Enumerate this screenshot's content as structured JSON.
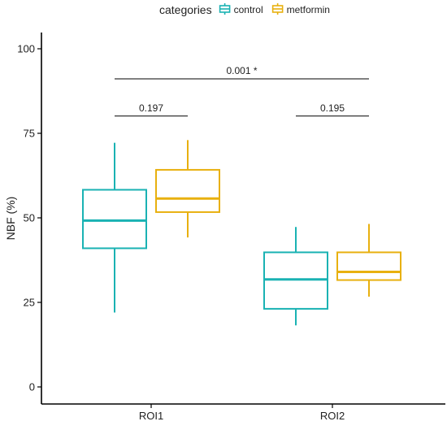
{
  "chart_data": {
    "type": "boxplot",
    "xlabel": "",
    "ylabel": "NBF (%)",
    "ylim": [
      0,
      100
    ],
    "y_ticks": [
      0,
      25,
      50,
      75,
      100
    ],
    "categories": [
      "ROI1",
      "ROI2"
    ],
    "grid": false,
    "legend": {
      "title": "categories",
      "placement": "top",
      "entries": [
        {
          "name": "control",
          "color": "#1ab2b3"
        },
        {
          "name": "metformin",
          "color": "#e8b00f"
        }
      ]
    },
    "series": [
      {
        "name": "control",
        "color": "#1ab2b3",
        "boxes": [
          {
            "category": "ROI1",
            "whisker_low": 22,
            "q1": 41,
            "median": 49.2,
            "q3": 58.3,
            "whisker_high": 72.2
          },
          {
            "category": "ROI2",
            "whisker_low": 18.2,
            "q1": 23.1,
            "median": 31.8,
            "q3": 39.8,
            "whisker_high": 47.3
          }
        ]
      },
      {
        "name": "metformin",
        "color": "#e8b00f",
        "boxes": [
          {
            "category": "ROI1",
            "whisker_low": 44.2,
            "q1": 51.7,
            "median": 55.7,
            "q3": 64.2,
            "whisker_high": 73
          },
          {
            "category": "ROI2",
            "whisker_low": 26.7,
            "q1": 31.6,
            "median": 34,
            "q3": 39.8,
            "whisker_high": 48.2
          }
        ]
      }
    ],
    "annotations": [
      {
        "label": "0.001 *",
        "y": 91.1,
        "from": "ROI1-control",
        "to": "ROI2-metformin"
      },
      {
        "label": "0.197",
        "y": 80.1,
        "from": "ROI1-control",
        "to": "ROI1-metformin"
      },
      {
        "label": "0.195",
        "y": 80.1,
        "from": "ROI2-control",
        "to": "ROI2-metformin"
      }
    ]
  }
}
